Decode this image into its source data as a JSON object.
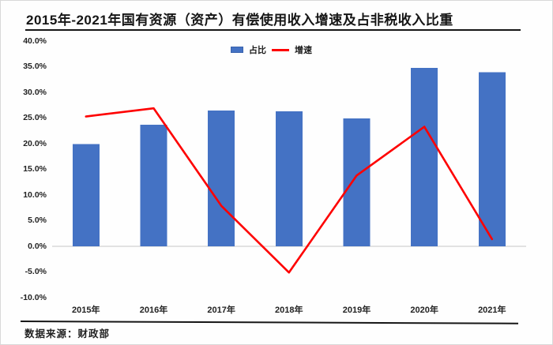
{
  "title": "2015年-2021年国有资源（资产）有偿使用收入增速及占非税收入比重",
  "source_note": "数据来源：财政部",
  "colors": {
    "bar": "#4472C4",
    "bar_edge": "#3a63ad",
    "line": "#FE0000",
    "axis_line": "#d9d9d9",
    "rule": "#161616"
  },
  "chart_data": {
    "type": "bar",
    "subtype": "bar-line-combo",
    "title": "2015年-2021年国有资源（资产）有偿使用收入增速及占非税收入比重",
    "categories": [
      "2015年",
      "2016年",
      "2017年",
      "2018年",
      "2019年",
      "2020年",
      "2021年"
    ],
    "series": [
      {
        "name": "占比",
        "chart": "bar",
        "color": "#4472C4",
        "values": [
          19.9,
          23.7,
          26.5,
          26.3,
          24.9,
          34.8,
          33.9
        ]
      },
      {
        "name": "增速",
        "chart": "line",
        "color": "#FE0000",
        "values": [
          25.3,
          26.9,
          7.9,
          -5.1,
          13.8,
          23.3,
          1.4
        ]
      }
    ],
    "xlabel": "",
    "ylabel": "",
    "ylim": [
      -10,
      40
    ],
    "y_tick_step": 5,
    "y_tick_labels": [
      "40.0%",
      "35.0%",
      "30.0%",
      "25.0%",
      "20.0%",
      "15.0%",
      "10.0%",
      "5.0%",
      "0.0%",
      "-5.0%",
      "-10.0%"
    ],
    "grid": false,
    "legend_position": "top-center"
  }
}
